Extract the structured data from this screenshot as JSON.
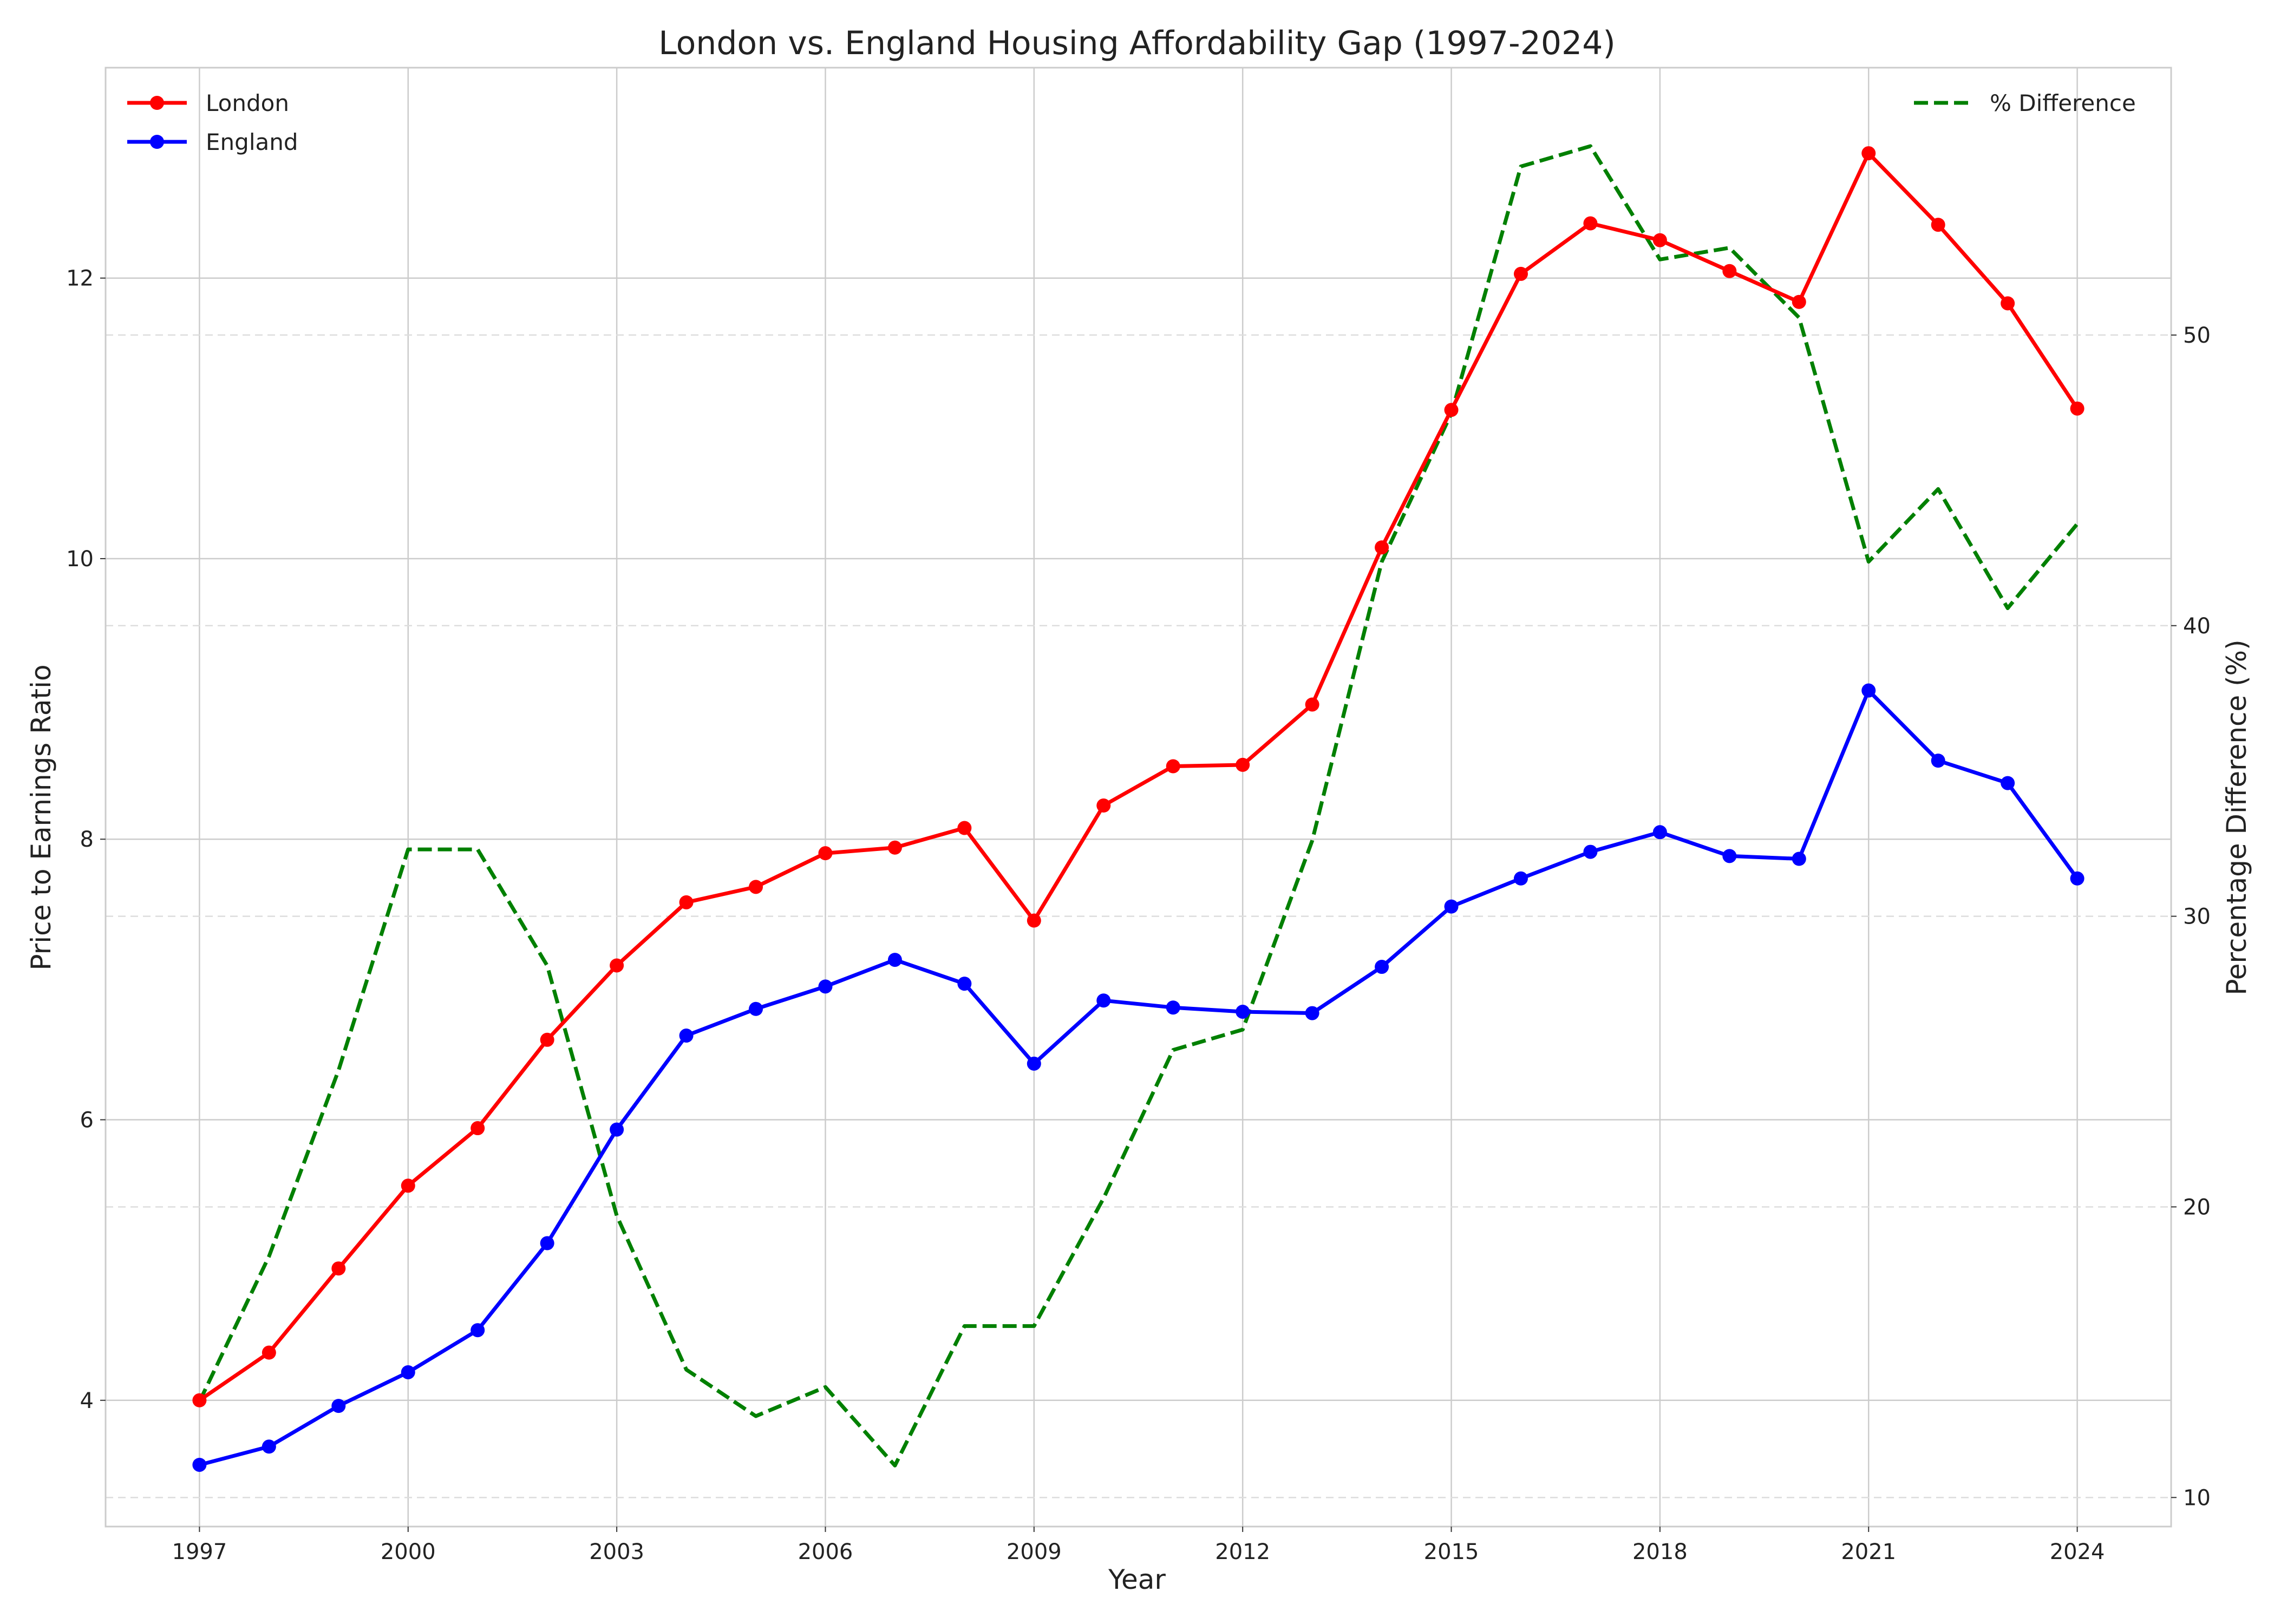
{
  "chart_data": {
    "type": "line",
    "title": "London vs. England Housing Affordability Gap (1997-2024)",
    "xlabel": "Year",
    "ylabel": "Price to Earnings Ratio",
    "y2label": "Percentage Difference (%)",
    "x": [
      1997,
      1998,
      1999,
      2000,
      2001,
      2002,
      2003,
      2004,
      2005,
      2006,
      2007,
      2008,
      2009,
      2010,
      2011,
      2012,
      2013,
      2014,
      2015,
      2016,
      2017,
      2018,
      2019,
      2020,
      2021,
      2022,
      2023,
      2024
    ],
    "xticks": [
      1997,
      2000,
      2003,
      2006,
      2009,
      2012,
      2015,
      2018,
      2021,
      2024
    ],
    "xlim": [
      1995.65,
      2025.35
    ],
    "ylim": [
      3.1,
      13.5
    ],
    "yticks": [
      4,
      6,
      8,
      10,
      12
    ],
    "y2lim": [
      9.0,
      59.2
    ],
    "y2ticks": [
      10,
      20,
      30,
      40,
      50
    ],
    "grid": true,
    "series": [
      {
        "name": "London",
        "axis": "left",
        "color": "#ff0000",
        "style": "solid",
        "marker": "circle",
        "values": [
          4.0,
          4.34,
          4.94,
          5.53,
          5.94,
          6.57,
          7.1,
          7.55,
          7.66,
          7.9,
          7.94,
          8.08,
          7.42,
          8.24,
          8.52,
          8.53,
          8.96,
          10.08,
          11.06,
          12.03,
          12.39,
          12.27,
          12.05,
          11.83,
          12.89,
          12.38,
          11.82,
          11.07
        ]
      },
      {
        "name": "England",
        "axis": "left",
        "color": "#0000ff",
        "style": "solid",
        "marker": "circle",
        "values": [
          3.54,
          3.67,
          3.96,
          4.2,
          4.5,
          5.12,
          5.93,
          6.6,
          6.79,
          6.95,
          7.14,
          6.97,
          6.4,
          6.85,
          6.8,
          6.77,
          6.76,
          7.09,
          7.52,
          7.72,
          7.91,
          8.05,
          7.88,
          7.86,
          9.06,
          8.56,
          8.4,
          7.72
        ]
      },
      {
        "name": "% Difference",
        "axis": "right",
        "color": "#008000",
        "style": "dashed",
        "marker": "none",
        "values": [
          13.3,
          18.3,
          24.7,
          32.3,
          32.3,
          28.3,
          19.7,
          14.4,
          12.8,
          13.8,
          11.1,
          15.9,
          15.9,
          20.3,
          25.4,
          26.1,
          32.6,
          42.2,
          47.3,
          55.8,
          56.5,
          52.6,
          53.0,
          50.6,
          42.2,
          44.7,
          40.6,
          43.5
        ]
      }
    ],
    "legend": [
      {
        "position": "upper-left",
        "entries": [
          "London",
          "England"
        ]
      },
      {
        "position": "upper-right",
        "entries": [
          "% Difference"
        ]
      }
    ]
  }
}
